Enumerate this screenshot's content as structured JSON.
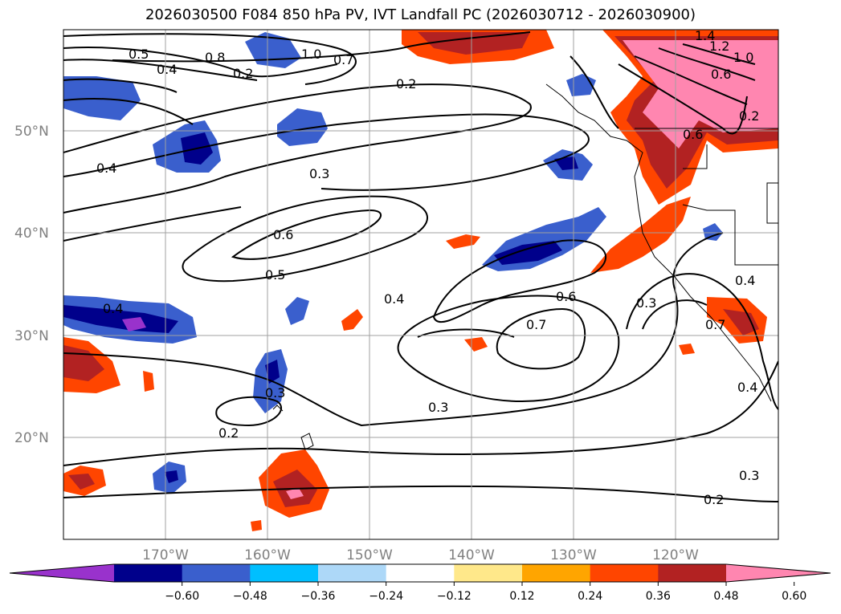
{
  "title": "2026030500 F084 850 hPa PV, IVT Landfall PC (2026030712 - 2026030900)",
  "lat_labels": [
    "50°N",
    "40°N",
    "30°N",
    "20°N"
  ],
  "lon_labels": [
    "170°W",
    "160°W",
    "150°W",
    "140°W",
    "130°W",
    "120°W"
  ],
  "colorbar": {
    "ticks": [
      "−0.60",
      "−0.48",
      "−0.36",
      "−0.24",
      "−0.12",
      "0.12",
      "0.24",
      "0.36",
      "0.48",
      "0.60"
    ],
    "colors": [
      "#9932cc",
      "#00008b",
      "#3a5fcd",
      "#00bfff",
      "#add8f8",
      "#ffffff",
      "#ffe88a",
      "#ffa500",
      "#ff4500",
      "#b22222",
      "#ff86b0"
    ]
  },
  "contour_labels": [
    "0.5",
    "0.4",
    "0.8",
    "1.0",
    "0.7",
    "1.4",
    "1.2",
    "1.0",
    "0.6",
    "0.2",
    "0.4",
    "0.3",
    "0.6",
    "0.5",
    "0.4",
    "0.6",
    "0.7",
    "0.3",
    "0.3",
    "0.2",
    "0.3",
    "0.4",
    "0.3",
    "0.2",
    "0.4",
    "0.6",
    "0.2",
    "0.7",
    "0.4",
    "0.2"
  ]
}
